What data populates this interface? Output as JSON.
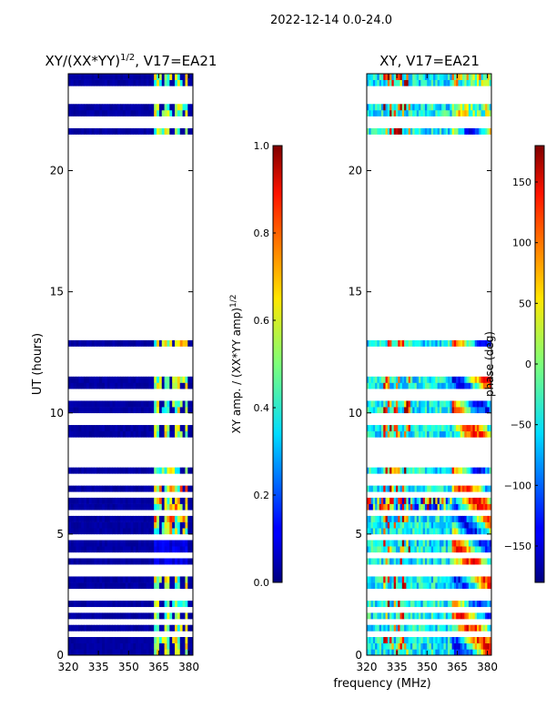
{
  "figure_title": "2022-12-14 0.0-24.0",
  "chart_data": [
    {
      "type": "heatmap",
      "title_main": "XY/(XX*YY)",
      "title_sup": "1/2",
      "title_rest": ", V17=EA21",
      "xlabel": "",
      "ylabel": "UT (hours)",
      "xlim": [
        320,
        382
      ],
      "ylim": [
        0,
        24
      ],
      "xticks": [
        "320",
        "335",
        "350",
        "365",
        "380"
      ],
      "xtick_values": [
        320,
        335,
        350,
        365,
        380
      ],
      "yticks": [
        "0",
        "5",
        "10",
        "15",
        "20"
      ],
      "ytick_values": [
        0,
        5,
        10,
        15,
        20
      ],
      "data_gaps_hours": [
        [
          13.8,
          21.6
        ]
      ],
      "blank_rows_hours": [
        0.95,
        1.45,
        1.9,
        2.35,
        2.62,
        3.5,
        4.05,
        4.8,
        4.95,
        5.9,
        6.7,
        7.2,
        7.45,
        8.0,
        8.45,
        8.7,
        8.9,
        9.55,
        9.75,
        10.75,
        10.95,
        11.6,
        11.85,
        12.2,
        12.45,
        12.6,
        13.15,
        13.35,
        13.6,
        21.95,
        22.15,
        23.0,
        23.3
      ],
      "value_range": [
        0.0,
        1.0
      ],
      "colorbar": {
        "label_main": "XY amp. / (XX*YY amp)",
        "label_sup": "1/2",
        "ticks": [
          "0.0",
          "0.2",
          "0.4",
          "0.6",
          "0.8",
          "1.0"
        ],
        "tick_values": [
          0.0,
          0.2,
          0.4,
          0.6,
          0.8,
          1.0
        ]
      }
    },
    {
      "type": "heatmap",
      "title_main": "XY, V17=EA21",
      "xlabel": "frequency (MHz)",
      "ylabel": "",
      "xlim": [
        320,
        382
      ],
      "ylim": [
        0,
        24
      ],
      "xticks": [
        "320",
        "335",
        "350",
        "365",
        "380"
      ],
      "xtick_values": [
        320,
        335,
        350,
        365,
        380
      ],
      "yticks": [
        "0",
        "5",
        "10",
        "15",
        "20"
      ],
      "ytick_values": [
        0,
        5,
        10,
        15,
        20
      ],
      "data_gaps_hours": [
        [
          13.8,
          21.6
        ]
      ],
      "blank_rows_hours": [
        0.95,
        1.45,
        1.9,
        2.35,
        2.62,
        3.5,
        4.05,
        4.8,
        4.95,
        5.9,
        6.7,
        7.2,
        7.45,
        8.0,
        8.45,
        8.7,
        8.9,
        9.55,
        9.75,
        10.75,
        10.95,
        11.6,
        11.85,
        12.2,
        12.45,
        12.6,
        13.15,
        13.35,
        13.6,
        21.95,
        22.15,
        23.0,
        23.3
      ],
      "value_range": [
        -180,
        180
      ],
      "colorbar": {
        "label": "phase (deg)",
        "ticks": [
          "−150",
          "−100",
          "−50",
          "0",
          "50",
          "100",
          "150"
        ],
        "tick_values": [
          -150,
          -100,
          -50,
          0,
          50,
          100,
          150
        ]
      }
    }
  ]
}
